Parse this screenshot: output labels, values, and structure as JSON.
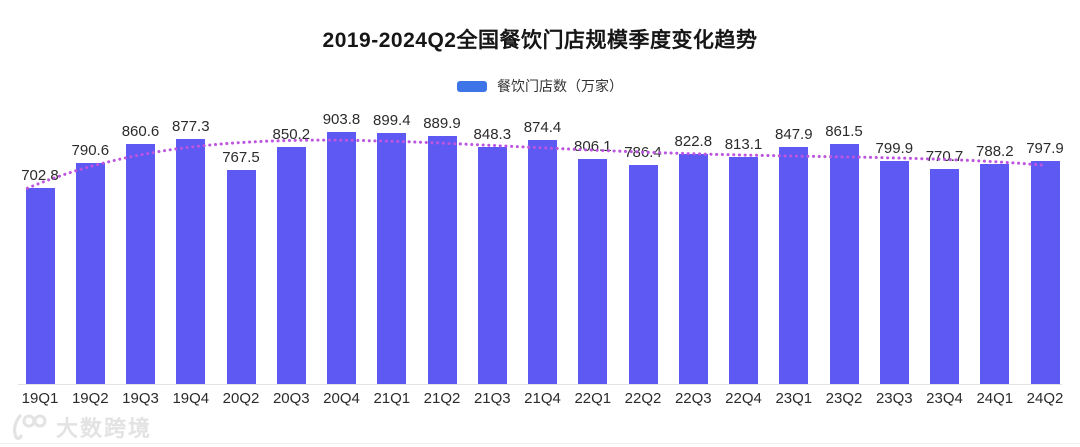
{
  "legend": {
    "swatch_color": "#3D74E8"
  },
  "watermark": {
    "text": "大数跨境"
  },
  "chart_data": {
    "type": "bar",
    "title": "2019-2024Q2全国餐饮门店规模季度变化趋势",
    "series_label": "餐饮门店数（万家）",
    "categories": [
      "19Q1",
      "19Q2",
      "19Q3",
      "19Q4",
      "20Q2",
      "20Q3",
      "20Q4",
      "21Q1",
      "21Q2",
      "21Q3",
      "21Q4",
      "22Q1",
      "22Q2",
      "22Q3",
      "22Q4",
      "23Q1",
      "23Q2",
      "23Q3",
      "23Q4",
      "24Q1",
      "24Q2"
    ],
    "values": [
      702.8,
      790.6,
      860.6,
      877.3,
      767.5,
      850.2,
      903.8,
      899.4,
      889.9,
      848.3,
      874.4,
      806.1,
      786.4,
      822.8,
      813.1,
      847.9,
      861.5,
      799.9,
      770.7,
      788.2,
      797.9
    ],
    "ylabel": "",
    "xlabel": "",
    "ylim": [
      0,
      1000
    ],
    "grid": false,
    "legend_position": "top",
    "annotations": "dotted smooth trend line over bar tops",
    "bar_color": "#5E59F3",
    "trend_line_color": "#BD55E0",
    "label_color": "#2B2B2B",
    "axis_line_color": "#E3E3E3"
  }
}
